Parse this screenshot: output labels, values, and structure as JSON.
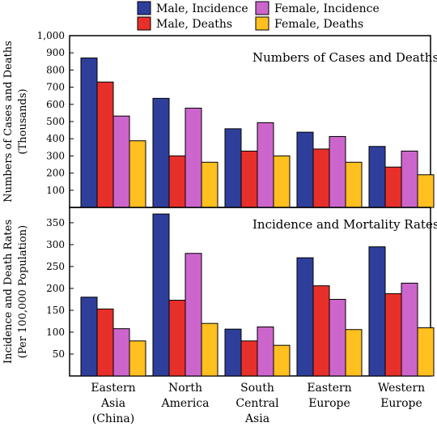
{
  "legend": [
    {
      "label": "Male, Incidence",
      "color": "#2E3F9B"
    },
    {
      "label": "Male, Deaths",
      "color": "#E8302A"
    },
    {
      "label": "Female, Incidence",
      "color": "#CC66CC"
    },
    {
      "label": "Female, Deaths",
      "color": "#FFC020"
    }
  ],
  "chart_data": [
    {
      "type": "bar",
      "title": "Numbers of Cases and Deaths",
      "ylabel": [
        "Numbers of Cases and Deaths",
        "(Thousands)"
      ],
      "ylim": [
        0,
        1000
      ],
      "yticks": [
        "100",
        "200",
        "300",
        "400",
        "500",
        "600",
        "700",
        "800",
        "900",
        "1,000"
      ],
      "categories": [
        [
          "Eastern",
          "Asia",
          "(China)"
        ],
        [
          "North",
          "America"
        ],
        [
          "South",
          "Central",
          "Asia"
        ],
        [
          "Eastern",
          "Europe"
        ],
        [
          "Western",
          "Europe"
        ]
      ],
      "series": [
        {
          "name": "Male, Incidence",
          "values": [
            870,
            635,
            458,
            438,
            355
          ]
        },
        {
          "name": "Male, Deaths",
          "values": [
            730,
            300,
            328,
            340,
            235
          ]
        },
        {
          "name": "Female, Incidence",
          "values": [
            532,
            578,
            493,
            413,
            328
          ]
        },
        {
          "name": "Female, Deaths",
          "values": [
            388,
            263,
            300,
            263,
            190
          ]
        }
      ]
    },
    {
      "type": "bar",
      "title": "Incidence and Mortality Rates",
      "ylabel": [
        "Incidence and Death Rates",
        "(Per 100,000 Population)"
      ],
      "ylim": [
        0,
        385
      ],
      "yticks": [
        "50",
        "100",
        "150",
        "200",
        "250",
        "300",
        "350"
      ],
      "categories": [
        [
          "Eastern",
          "Asia",
          "(China)"
        ],
        [
          "North",
          "America"
        ],
        [
          "South",
          "Central",
          "Asia"
        ],
        [
          "Eastern",
          "Europe"
        ],
        [
          "Western",
          "Europe"
        ]
      ],
      "series": [
        {
          "name": "Male, Incidence",
          "values": [
            180,
            370,
            107,
            270,
            295
          ]
        },
        {
          "name": "Male, Deaths",
          "values": [
            153,
            173,
            80,
            206,
            188
          ]
        },
        {
          "name": "Female, Incidence",
          "values": [
            108,
            280,
            112,
            175,
            212
          ]
        },
        {
          "name": "Female, Deaths",
          "values": [
            80,
            120,
            70,
            106,
            110
          ]
        }
      ]
    }
  ]
}
